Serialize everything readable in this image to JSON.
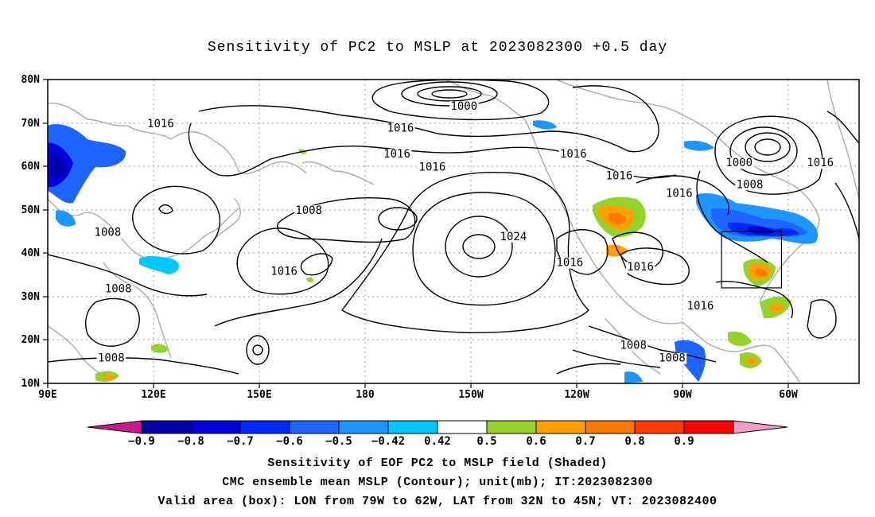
{
  "title": "Sensitivity of PC2 to MSLP at 2023082300 +0.5 day",
  "lat_labels": [
    "80N",
    "70N",
    "60N",
    "50N",
    "40N",
    "30N",
    "20N",
    "10N"
  ],
  "lon_labels": [
    "90E",
    "120E",
    "150E",
    "180",
    "150W",
    "120W",
    "90W",
    "60W"
  ],
  "contour_labels": [
    {
      "text": "1016",
      "lon": 122,
      "lat": 69
    },
    {
      "text": "1000",
      "lon": -152,
      "lat": 73
    },
    {
      "text": "1016",
      "lon": -170,
      "lat": 68
    },
    {
      "text": "1016",
      "lon": -171,
      "lat": 62
    },
    {
      "text": "1016",
      "lon": -161,
      "lat": 59
    },
    {
      "text": "1016",
      "lon": -121,
      "lat": 62
    },
    {
      "text": "1016",
      "lon": -108,
      "lat": 57
    },
    {
      "text": "1016",
      "lon": -91,
      "lat": 53
    },
    {
      "text": "1000",
      "lon": -74,
      "lat": 60
    },
    {
      "text": "1008",
      "lon": -71,
      "lat": 55
    },
    {
      "text": "1016",
      "lon": -51,
      "lat": 60
    },
    {
      "text": "1008",
      "lon": 164,
      "lat": 49
    },
    {
      "text": "1008",
      "lon": 107,
      "lat": 44
    },
    {
      "text": "1024",
      "lon": -138,
      "lat": 43
    },
    {
      "text": "1016",
      "lon": -122,
      "lat": 37
    },
    {
      "text": "1016",
      "lon": -102,
      "lat": 36
    },
    {
      "text": "1016",
      "lon": 157,
      "lat": 35
    },
    {
      "text": "1008",
      "lon": 110,
      "lat": 31
    },
    {
      "text": "1016",
      "lon": -85,
      "lat": 27
    },
    {
      "text": "1008",
      "lon": -104,
      "lat": 18
    },
    {
      "text": "1008",
      "lon": -93,
      "lat": 15
    },
    {
      "text": "1008",
      "lon": 108,
      "lat": 15
    }
  ],
  "colorbar": {
    "labels": [
      "-0.9",
      "-0.8",
      "-0.7",
      "-0.6",
      "-0.5",
      "-0.42",
      "0.42",
      "0.5",
      "0.6",
      "0.7",
      "0.8",
      "0.9"
    ],
    "colors": [
      "#c8188c",
      "#0000a5",
      "#0000dc",
      "#0028ff",
      "#1e64ff",
      "#1e96ff",
      "#00c8ff",
      "#ffffff",
      "#96d22d",
      "#ffa000",
      "#ff7800",
      "#ff3c00",
      "#ff0000",
      "#f0a0c8"
    ]
  },
  "captions": [
    "Sensitivity of EOF PC2 to MSLP field (Shaded)",
    "CMC ensemble mean MSLP (Contour); unit(mb); IT:2023082300",
    "Valid area (box): LON from 79W to 62W, LAT from 32N to 45N; VT: 2023082400"
  ],
  "valid_box": {
    "lon_min": -79,
    "lon_max": -62,
    "lat_min": 32,
    "lat_max": 45
  },
  "map_extent": {
    "lon_min": 90,
    "lon_max": 320,
    "lat_min": 10,
    "lat_max": 80
  }
}
